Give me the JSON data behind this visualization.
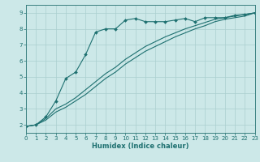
{
  "xlabel": "Humidex (Indice chaleur)",
  "xlim": [
    0,
    23
  ],
  "ylim": [
    1.5,
    9.5
  ],
  "xticks": [
    0,
    1,
    2,
    3,
    4,
    5,
    6,
    7,
    8,
    9,
    10,
    11,
    12,
    13,
    14,
    15,
    16,
    17,
    18,
    19,
    20,
    21,
    22,
    23
  ],
  "yticks": [
    2,
    3,
    4,
    5,
    6,
    7,
    8,
    9
  ],
  "background_color": "#cce8e8",
  "grid_color": "#aacfcf",
  "line_color": "#1e7070",
  "series1_x": [
    0,
    1,
    2,
    3,
    4,
    5,
    6,
    7,
    8,
    9,
    10,
    11,
    12,
    13,
    14,
    15,
    16,
    17,
    18,
    19,
    20,
    21,
    22,
    23
  ],
  "series1_y": [
    1.9,
    2.0,
    2.5,
    3.5,
    4.9,
    5.3,
    6.4,
    7.8,
    8.0,
    8.0,
    8.55,
    8.65,
    8.45,
    8.45,
    8.45,
    8.55,
    8.65,
    8.45,
    8.7,
    8.7,
    8.7,
    8.85,
    8.9,
    9.0
  ],
  "series2_x": [
    0,
    1,
    2,
    3,
    4,
    5,
    6,
    7,
    8,
    9,
    10,
    11,
    12,
    13,
    14,
    15,
    16,
    17,
    18,
    19,
    20,
    21,
    22,
    23
  ],
  "series2_y": [
    1.9,
    2.0,
    2.4,
    3.0,
    3.3,
    3.7,
    4.2,
    4.7,
    5.2,
    5.6,
    6.1,
    6.5,
    6.9,
    7.2,
    7.5,
    7.75,
    8.0,
    8.2,
    8.4,
    8.6,
    8.7,
    8.8,
    8.9,
    9.0
  ],
  "series3_x": [
    0,
    1,
    2,
    3,
    4,
    5,
    6,
    7,
    8,
    9,
    10,
    11,
    12,
    13,
    14,
    15,
    16,
    17,
    18,
    19,
    20,
    21,
    22,
    23
  ],
  "series3_y": [
    1.9,
    2.0,
    2.3,
    2.8,
    3.1,
    3.5,
    3.9,
    4.4,
    4.9,
    5.3,
    5.8,
    6.2,
    6.6,
    6.9,
    7.2,
    7.5,
    7.75,
    8.0,
    8.2,
    8.45,
    8.6,
    8.7,
    8.8,
    9.0
  ]
}
